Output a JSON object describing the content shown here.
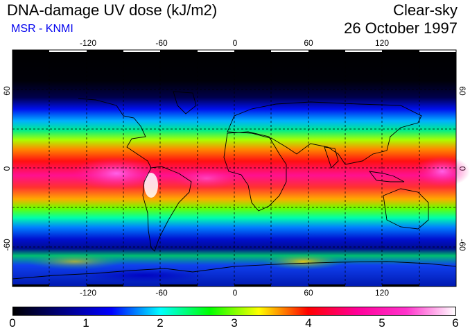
{
  "header": {
    "title": "DNA-damage UV dose (kJ/m2)",
    "source": "MSR - KNMI",
    "condition": "Clear-sky",
    "date": "26 October 1997"
  },
  "map": {
    "lon_ticks": [
      "-120",
      "-60",
      "0",
      "60",
      "120"
    ],
    "lat_ticks_left": [
      "60",
      "0",
      "-60"
    ],
    "lat_ticks_right": [
      "60",
      "0",
      "-60"
    ],
    "lon_range": [
      -180,
      180
    ],
    "lat_range": [
      -90,
      90
    ],
    "gridlines": "dashed",
    "colors": {
      "source_text": "#0000ee",
      "coastline": "#000000"
    }
  },
  "colorbar": {
    "labels": [
      "0",
      "1",
      "2",
      "3",
      "4",
      "5",
      "6"
    ],
    "range": [
      0,
      6
    ],
    "colormap": [
      "#000000",
      "#000080",
      "#0000ff",
      "#00ffff",
      "#00ff00",
      "#ffff00",
      "#ff0000",
      "#ff0099",
      "#ff33cc",
      "#ffffff"
    ]
  }
}
